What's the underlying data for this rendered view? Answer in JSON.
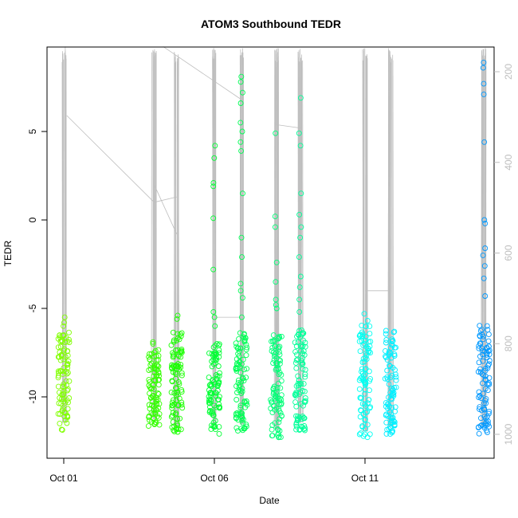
{
  "chart_data": {
    "type": "scatter",
    "title": "ATOM3 Southbound TEDR",
    "xlabel": "Date",
    "ylabel": "TEDR",
    "x_ticks": [
      {
        "label": "Oct 01",
        "day": 1
      },
      {
        "label": "Oct 06",
        "day": 6
      },
      {
        "label": "Oct 11",
        "day": 11
      }
    ],
    "xlim_days": [
      1.0,
      15.0
    ],
    "ylim": [
      -13.2,
      9.8
    ],
    "y_ticks": [
      -10,
      -5,
      0,
      5
    ],
    "y2_label": "",
    "y2_ticks": [
      200,
      400,
      600,
      800,
      1000
    ],
    "y2lim": [
      1048,
      148
    ],
    "y2_axis_color": "#bebebe",
    "grid": false,
    "legend": "none",
    "point_colors": [
      "#7FFF00",
      "#00FF00",
      "#00FF7F",
      "#00FFFF",
      "#00AAFF"
    ],
    "clusters": [
      {
        "day": 1.0,
        "ymin": -11.9,
        "ymax": -6.3,
        "color": "#80FF00",
        "outliers": [
          -5.5,
          -5.8,
          -6.0
        ]
      },
      {
        "day": 4.0,
        "ymin": -11.7,
        "ymax": -7.2,
        "color": "#33FF00",
        "outliers": [
          -6.9,
          -7.0
        ]
      },
      {
        "day": 4.75,
        "ymin": -12.1,
        "ymax": -6.2,
        "color": "#1AFF00",
        "outliers": [
          -5.4,
          -5.6
        ]
      },
      {
        "day": 6.0,
        "ymin": -12.1,
        "ymax": -6.8,
        "color": "#00FF33",
        "outliers": [
          -6.0,
          -5.5,
          -5.2,
          -2.8,
          0.1,
          1.9,
          2.1,
          3.5,
          4.2
        ]
      },
      {
        "day": 6.9,
        "ymin": -12.0,
        "ymax": -6.3,
        "color": "#00FF55",
        "outliers": [
          -5.5,
          -4.4,
          -4.0,
          -3.6,
          -2.1,
          -1.0,
          1.5,
          3.9,
          4.4,
          5.0,
          5.5,
          6.6,
          7.2,
          7.8,
          8.1
        ]
      },
      {
        "day": 8.05,
        "ymin": -12.3,
        "ymax": -6.0,
        "color": "#00FF77",
        "outliers": [
          -5.0,
          -4.8,
          -4.5,
          -3.5,
          -2.4,
          -0.4,
          0.2,
          4.9
        ]
      },
      {
        "day": 8.85,
        "ymin": -11.9,
        "ymax": -6.2,
        "color": "#00FF99",
        "outliers": [
          -5.2,
          -4.5,
          -3.8,
          -3.2,
          -2.1,
          -1.0,
          -0.4,
          0.3,
          1.5,
          4.2,
          4.9,
          6.9
        ]
      },
      {
        "day": 11.0,
        "ymin": -12.4,
        "ymax": -5.6,
        "color": "#00FFF2",
        "outliers": [
          -5.3
        ]
      },
      {
        "day": 11.85,
        "ymin": -12.1,
        "ymax": -6.2,
        "color": "#00F0FF",
        "outliers": []
      },
      {
        "day": 14.95,
        "ymin": -12.1,
        "ymax": -5.9,
        "color": "#0099FF",
        "outliers": [
          -4.3,
          -3.3,
          -2.6,
          -2.0,
          -1.6,
          -0.2,
          0.0,
          4.4,
          7.1,
          7.7,
          8.6,
          8.9
        ]
      }
    ],
    "line_color": "#bebebe",
    "depth_series": {
      "description_points": [
        {
          "day": 1.05,
          "depth": 970
        },
        {
          "day": 1.05,
          "depth": 148
        },
        {
          "day": 1.1,
          "depth": 320
        },
        {
          "day": 4.0,
          "depth": 510
        },
        {
          "day": 4.0,
          "depth": 148
        },
        {
          "day": 4.75,
          "depth": 510
        },
        {
          "day": 4.75,
          "depth": 148
        },
        {
          "day": 6.0,
          "depth": 148
        },
        {
          "day": 6.9,
          "depth": 260
        },
        {
          "day": 8.0,
          "depth": 148
        },
        {
          "day": 8.85,
          "depth": 148
        },
        {
          "day": 11.0,
          "depth": 148
        },
        {
          "day": 11.85,
          "depth": 148
        },
        {
          "day": 14.95,
          "depth": 148
        }
      ]
    }
  }
}
